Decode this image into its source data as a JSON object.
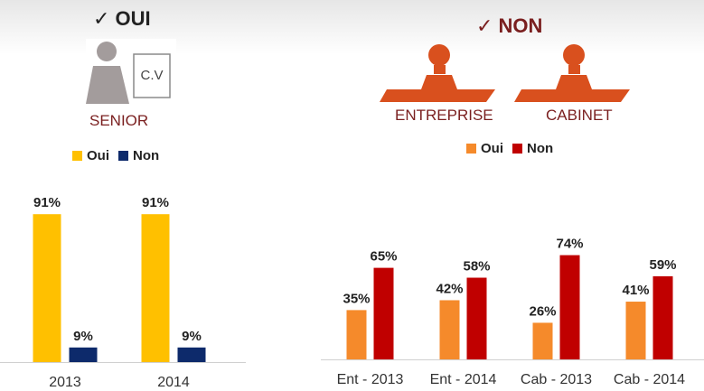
{
  "left": {
    "header": "✓ OUI",
    "header_color": "#222222",
    "cv_label": "C.V",
    "caption": "SENIOR",
    "caption_color": "#7a1f1f"
  },
  "right": {
    "header": "✓ NON",
    "header_color": "#7a1f1f",
    "stamps": [
      {
        "label": "ENTREPRISE"
      },
      {
        "label": "CABINET"
      }
    ],
    "caption_color": "#7a1f1f"
  },
  "colors": {
    "left_oui": "#FFC000",
    "left_non": "#0D2A6B",
    "right_oui": "#F58A2B",
    "right_non": "#C00000",
    "stamp": "#D9501E"
  },
  "chart_data": [
    {
      "type": "bar",
      "categories": [
        "2013",
        "2014"
      ],
      "series": [
        {
          "name": "Oui",
          "values": [
            91,
            91
          ]
        },
        {
          "name": "Non",
          "values": [
            9,
            9
          ]
        }
      ],
      "value_suffix": "%",
      "ylim": [
        0,
        100
      ],
      "legend": "top-center"
    },
    {
      "type": "bar",
      "categories": [
        "Ent - 2013",
        "Ent - 2014",
        "Cab - 2013",
        "Cab - 2014"
      ],
      "series": [
        {
          "name": "Oui",
          "values": [
            35,
            42,
            26,
            41
          ]
        },
        {
          "name": "Non",
          "values": [
            65,
            58,
            74,
            59
          ]
        }
      ],
      "value_suffix": "%",
      "ylim": [
        0,
        100
      ],
      "legend": "top-left"
    }
  ]
}
